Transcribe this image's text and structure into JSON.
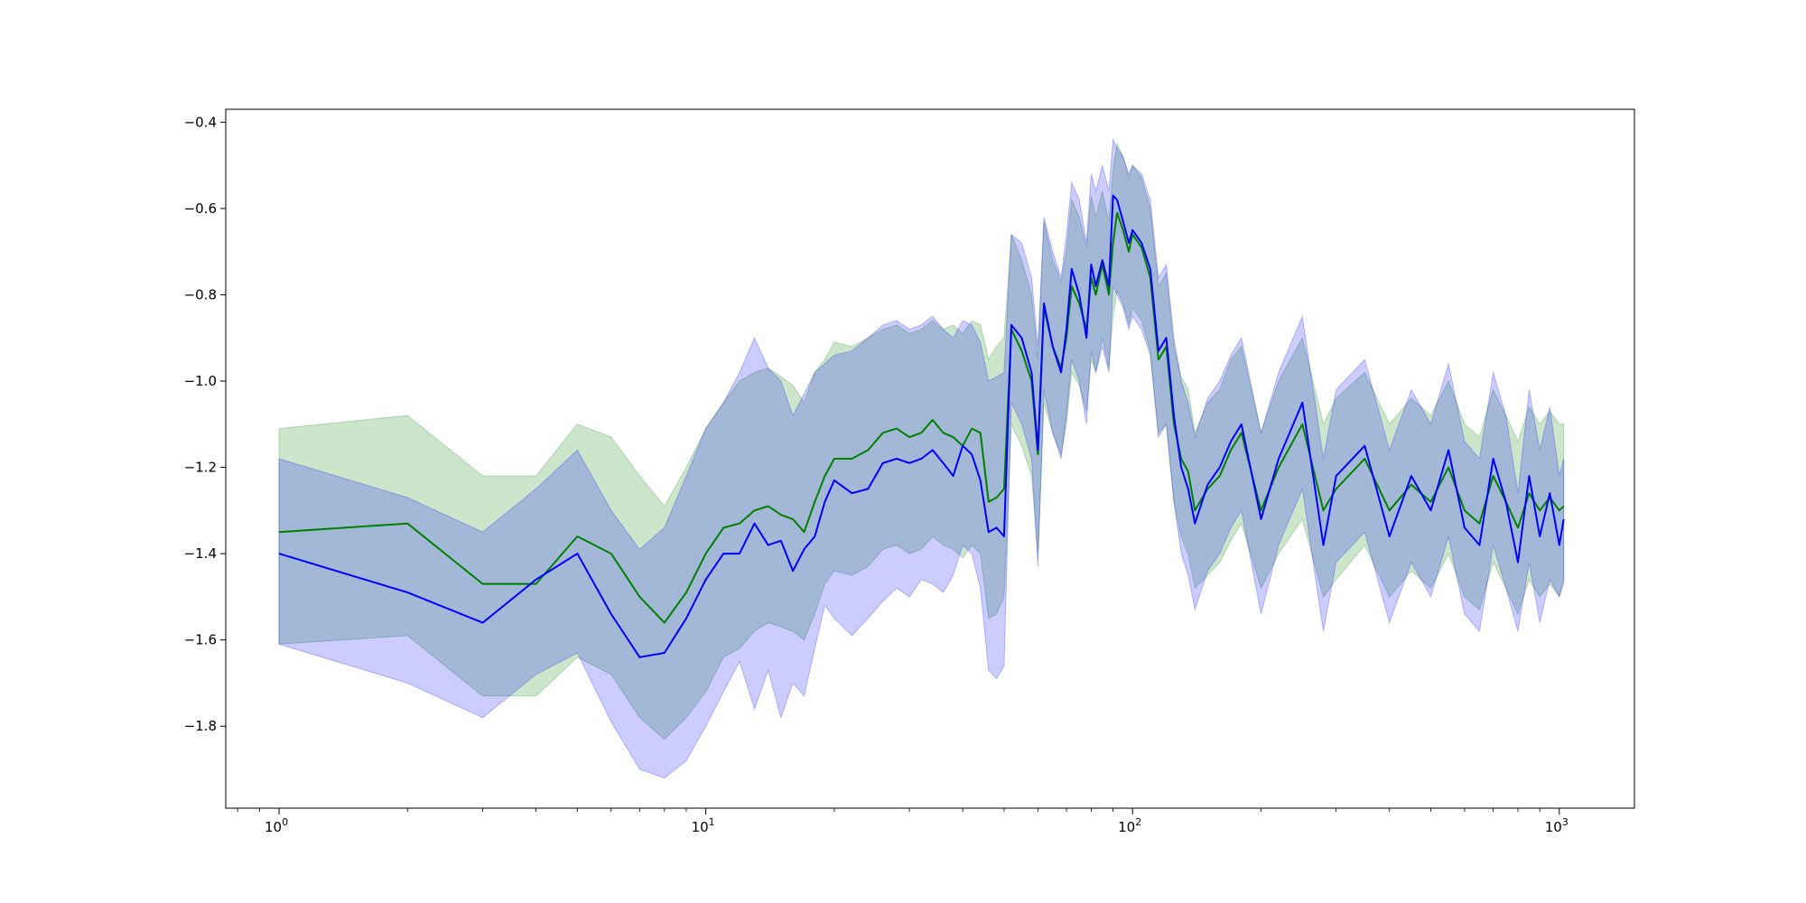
{
  "chart_data": {
    "type": "line",
    "title": "",
    "xlabel": "",
    "ylabel": "",
    "x_scale": "log",
    "xlim": [
      0.75,
      1500
    ],
    "ylim": [
      -1.99,
      -0.37
    ],
    "grid": false,
    "legend": "none",
    "x_ticks": [
      {
        "value": 1,
        "base": "10",
        "exp": "0"
      },
      {
        "value": 10,
        "base": "10",
        "exp": "1"
      },
      {
        "value": 100,
        "base": "10",
        "exp": "2"
      },
      {
        "value": 1000,
        "base": "10",
        "exp": "3"
      }
    ],
    "y_ticks": [
      {
        "value": -0.4,
        "label": "−0.4"
      },
      {
        "value": -0.6,
        "label": "−0.6"
      },
      {
        "value": -0.8,
        "label": "−0.8"
      },
      {
        "value": -1.0,
        "label": "−1.0"
      },
      {
        "value": -1.2,
        "label": "−1.2"
      },
      {
        "value": -1.4,
        "label": "−1.4"
      },
      {
        "value": -1.6,
        "label": "−1.6"
      },
      {
        "value": -1.8,
        "label": "−1.8"
      }
    ],
    "series": [
      {
        "color": "#008000",
        "band_color": "#008000",
        "band_opacity": 0.2,
        "x": [
          1,
          2,
          3,
          4,
          5,
          6,
          7,
          8,
          9,
          10,
          11,
          12,
          13,
          14,
          15,
          16,
          17,
          18,
          19,
          20,
          22,
          24,
          26,
          28,
          30,
          32,
          34,
          36,
          38,
          40,
          42,
          44,
          46,
          48,
          50,
          52,
          55,
          58,
          60,
          62,
          65,
          68,
          70,
          72,
          75,
          78,
          80,
          82,
          85,
          88,
          90,
          92,
          95,
          98,
          100,
          105,
          110,
          115,
          120,
          125,
          130,
          135,
          140,
          150,
          160,
          170,
          180,
          200,
          220,
          250,
          280,
          300,
          350,
          400,
          450,
          500,
          550,
          600,
          650,
          700,
          750,
          800,
          850,
          900,
          950,
          1000,
          1024
        ],
        "y": [
          -1.35,
          -1.33,
          -1.47,
          -1.47,
          -1.36,
          -1.4,
          -1.5,
          -1.56,
          -1.49,
          -1.4,
          -1.34,
          -1.33,
          -1.3,
          -1.29,
          -1.31,
          -1.32,
          -1.35,
          -1.28,
          -1.22,
          -1.18,
          -1.18,
          -1.16,
          -1.12,
          -1.11,
          -1.13,
          -1.12,
          -1.09,
          -1.12,
          -1.13,
          -1.15,
          -1.11,
          -1.12,
          -1.28,
          -1.27,
          -1.25,
          -0.88,
          -0.93,
          -1.0,
          -1.17,
          -0.83,
          -0.92,
          -0.97,
          -0.9,
          -0.78,
          -0.82,
          -0.88,
          -0.76,
          -0.8,
          -0.73,
          -0.8,
          -0.68,
          -0.61,
          -0.65,
          -0.7,
          -0.66,
          -0.69,
          -0.76,
          -0.95,
          -0.92,
          -1.1,
          -1.18,
          -1.21,
          -1.3,
          -1.25,
          -1.22,
          -1.16,
          -1.12,
          -1.3,
          -1.2,
          -1.1,
          -1.3,
          -1.25,
          -1.18,
          -1.3,
          -1.24,
          -1.28,
          -1.2,
          -1.3,
          -1.33,
          -1.22,
          -1.28,
          -1.34,
          -1.26,
          -1.3,
          -1.27,
          -1.3,
          -1.29
        ],
        "lower": [
          -1.61,
          -1.59,
          -1.73,
          -1.73,
          -1.64,
          -1.68,
          -1.78,
          -1.83,
          -1.78,
          -1.72,
          -1.64,
          -1.62,
          -1.58,
          -1.56,
          -1.57,
          -1.58,
          -1.6,
          -1.54,
          -1.47,
          -1.44,
          -1.45,
          -1.43,
          -1.39,
          -1.38,
          -1.4,
          -1.39,
          -1.36,
          -1.38,
          -1.39,
          -1.41,
          -1.38,
          -1.4,
          -1.55,
          -1.54,
          -1.5,
          -1.1,
          -1.15,
          -1.22,
          -1.4,
          -1.05,
          -1.12,
          -1.17,
          -1.1,
          -0.98,
          -1.01,
          -1.07,
          -0.95,
          -0.98,
          -0.9,
          -0.97,
          -0.85,
          -0.79,
          -0.82,
          -0.87,
          -0.83,
          -0.86,
          -0.93,
          -1.12,
          -1.1,
          -1.28,
          -1.36,
          -1.4,
          -1.48,
          -1.45,
          -1.42,
          -1.37,
          -1.33,
          -1.48,
          -1.4,
          -1.32,
          -1.5,
          -1.46,
          -1.38,
          -1.5,
          -1.44,
          -1.48,
          -1.4,
          -1.5,
          -1.53,
          -1.42,
          -1.48,
          -1.54,
          -1.46,
          -1.5,
          -1.47,
          -1.5,
          -1.47
        ],
        "upper": [
          -1.11,
          -1.08,
          -1.22,
          -1.22,
          -1.1,
          -1.13,
          -1.22,
          -1.29,
          -1.2,
          -1.11,
          -1.05,
          -1.0,
          -0.98,
          -0.97,
          -0.99,
          -1.01,
          -1.05,
          -0.98,
          -0.95,
          -0.91,
          -0.92,
          -0.9,
          -0.88,
          -0.87,
          -0.89,
          -0.88,
          -0.86,
          -0.88,
          -0.87,
          -0.89,
          -0.86,
          -0.87,
          -0.95,
          -0.92,
          -0.9,
          -0.66,
          -0.72,
          -0.8,
          -0.95,
          -0.63,
          -0.72,
          -0.77,
          -0.7,
          -0.58,
          -0.62,
          -0.69,
          -0.57,
          -0.62,
          -0.56,
          -0.63,
          -0.51,
          -0.45,
          -0.48,
          -0.53,
          -0.5,
          -0.53,
          -0.6,
          -0.78,
          -0.75,
          -0.92,
          -0.99,
          -1.02,
          -1.12,
          -1.05,
          -1.02,
          -0.95,
          -0.92,
          -1.12,
          -1.0,
          -0.9,
          -1.1,
          -1.04,
          -0.98,
          -1.1,
          -1.04,
          -1.08,
          -1.0,
          -1.1,
          -1.13,
          -1.02,
          -1.08,
          -1.14,
          -1.06,
          -1.1,
          -1.07,
          -1.1,
          -1.1
        ]
      },
      {
        "color": "#0000ff",
        "band_color": "#0000ff",
        "band_opacity": 0.2,
        "x": [
          1,
          2,
          3,
          4,
          5,
          6,
          7,
          8,
          9,
          10,
          11,
          12,
          13,
          14,
          15,
          16,
          17,
          18,
          19,
          20,
          22,
          24,
          26,
          28,
          30,
          32,
          34,
          36,
          38,
          40,
          42,
          44,
          46,
          48,
          50,
          52,
          55,
          58,
          60,
          62,
          65,
          68,
          70,
          72,
          75,
          78,
          80,
          82,
          85,
          88,
          90,
          92,
          95,
          98,
          100,
          105,
          110,
          115,
          120,
          125,
          130,
          135,
          140,
          150,
          160,
          170,
          180,
          200,
          220,
          250,
          280,
          300,
          350,
          400,
          450,
          500,
          550,
          600,
          650,
          700,
          750,
          800,
          850,
          900,
          950,
          1000,
          1024
        ],
        "y": [
          -1.4,
          -1.49,
          -1.56,
          -1.46,
          -1.4,
          -1.54,
          -1.64,
          -1.63,
          -1.55,
          -1.46,
          -1.4,
          -1.4,
          -1.33,
          -1.38,
          -1.37,
          -1.44,
          -1.39,
          -1.36,
          -1.28,
          -1.23,
          -1.26,
          -1.25,
          -1.19,
          -1.18,
          -1.19,
          -1.18,
          -1.16,
          -1.19,
          -1.22,
          -1.15,
          -1.17,
          -1.23,
          -1.35,
          -1.34,
          -1.36,
          -0.87,
          -0.9,
          -0.98,
          -1.16,
          -0.82,
          -0.92,
          -0.98,
          -0.88,
          -0.74,
          -0.8,
          -0.9,
          -0.73,
          -0.78,
          -0.72,
          -0.78,
          -0.57,
          -0.58,
          -0.63,
          -0.68,
          -0.65,
          -0.68,
          -0.74,
          -0.93,
          -0.9,
          -1.08,
          -1.2,
          -1.25,
          -1.33,
          -1.24,
          -1.2,
          -1.14,
          -1.1,
          -1.32,
          -1.18,
          -1.05,
          -1.38,
          -1.22,
          -1.15,
          -1.36,
          -1.22,
          -1.3,
          -1.16,
          -1.34,
          -1.38,
          -1.18,
          -1.28,
          -1.42,
          -1.22,
          -1.36,
          -1.26,
          -1.38,
          -1.32
        ],
        "lower": [
          -1.61,
          -1.7,
          -1.78,
          -1.68,
          -1.63,
          -1.79,
          -1.9,
          -1.92,
          -1.88,
          -1.8,
          -1.72,
          -1.65,
          -1.76,
          -1.67,
          -1.78,
          -1.7,
          -1.73,
          -1.62,
          -1.52,
          -1.55,
          -1.59,
          -1.55,
          -1.51,
          -1.48,
          -1.5,
          -1.46,
          -1.47,
          -1.49,
          -1.45,
          -1.38,
          -1.4,
          -1.48,
          -1.67,
          -1.69,
          -1.66,
          -1.05,
          -1.1,
          -1.18,
          -1.43,
          -1.02,
          -1.12,
          -1.18,
          -1.08,
          -0.95,
          -1.0,
          -1.1,
          -0.93,
          -0.98,
          -0.92,
          -0.98,
          -0.78,
          -0.8,
          -0.83,
          -0.88,
          -0.85,
          -0.88,
          -0.94,
          -1.13,
          -1.1,
          -1.28,
          -1.4,
          -1.45,
          -1.53,
          -1.44,
          -1.4,
          -1.34,
          -1.3,
          -1.54,
          -1.38,
          -1.25,
          -1.58,
          -1.42,
          -1.35,
          -1.56,
          -1.42,
          -1.5,
          -1.36,
          -1.54,
          -1.58,
          -1.38,
          -1.48,
          -1.58,
          -1.42,
          -1.56,
          -1.46,
          -1.5,
          -1.46
        ],
        "upper": [
          -1.18,
          -1.27,
          -1.35,
          -1.25,
          -1.16,
          -1.3,
          -1.39,
          -1.34,
          -1.22,
          -1.11,
          -1.05,
          -0.98,
          -0.9,
          -0.97,
          -1.0,
          -1.08,
          -1.03,
          -0.98,
          -0.96,
          -0.94,
          -0.93,
          -0.9,
          -0.87,
          -0.86,
          -0.88,
          -0.87,
          -0.85,
          -0.88,
          -0.9,
          -0.86,
          -0.87,
          -0.91,
          -1.0,
          -0.99,
          -0.98,
          -0.66,
          -0.68,
          -0.76,
          -0.92,
          -0.62,
          -0.7,
          -0.76,
          -0.66,
          -0.54,
          -0.58,
          -0.68,
          -0.52,
          -0.56,
          -0.5,
          -0.56,
          -0.44,
          -0.46,
          -0.48,
          -0.52,
          -0.5,
          -0.52,
          -0.58,
          -0.76,
          -0.73,
          -0.9,
          -1.0,
          -1.05,
          -1.13,
          -1.04,
          -1.0,
          -0.94,
          -0.9,
          -1.12,
          -0.98,
          -0.85,
          -1.18,
          -1.02,
          -0.95,
          -1.16,
          -1.02,
          -1.1,
          -0.96,
          -1.14,
          -1.18,
          -0.98,
          -1.08,
          -1.26,
          -1.02,
          -1.16,
          -1.06,
          -1.22,
          -1.18
        ]
      }
    ]
  }
}
